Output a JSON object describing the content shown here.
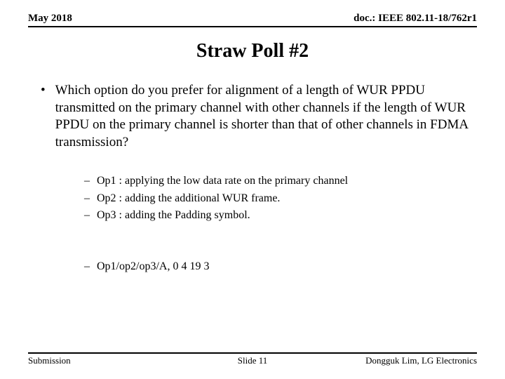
{
  "header": {
    "left": "May 2018",
    "right": "doc.: IEEE 802.11-18/762r1"
  },
  "title": "Straw Poll #2",
  "main_bullet": "Which option do you prefer for alignment of a length of WUR PPDU transmitted on the primary channel with other channels if the length of WUR PPDU on the primary channel is shorter than that of other channels in FDMA transmission?",
  "options": [
    "Op1 : applying the low data rate on the primary channel",
    "Op2 : adding the additional WUR frame.",
    "Op3 : adding the Padding symbol."
  ],
  "result": "Op1/op2/op3/A, 0 4 19 3",
  "footer": {
    "left": "Submission",
    "center": "Slide 11",
    "right": "Dongguk Lim, LG Electronics"
  }
}
